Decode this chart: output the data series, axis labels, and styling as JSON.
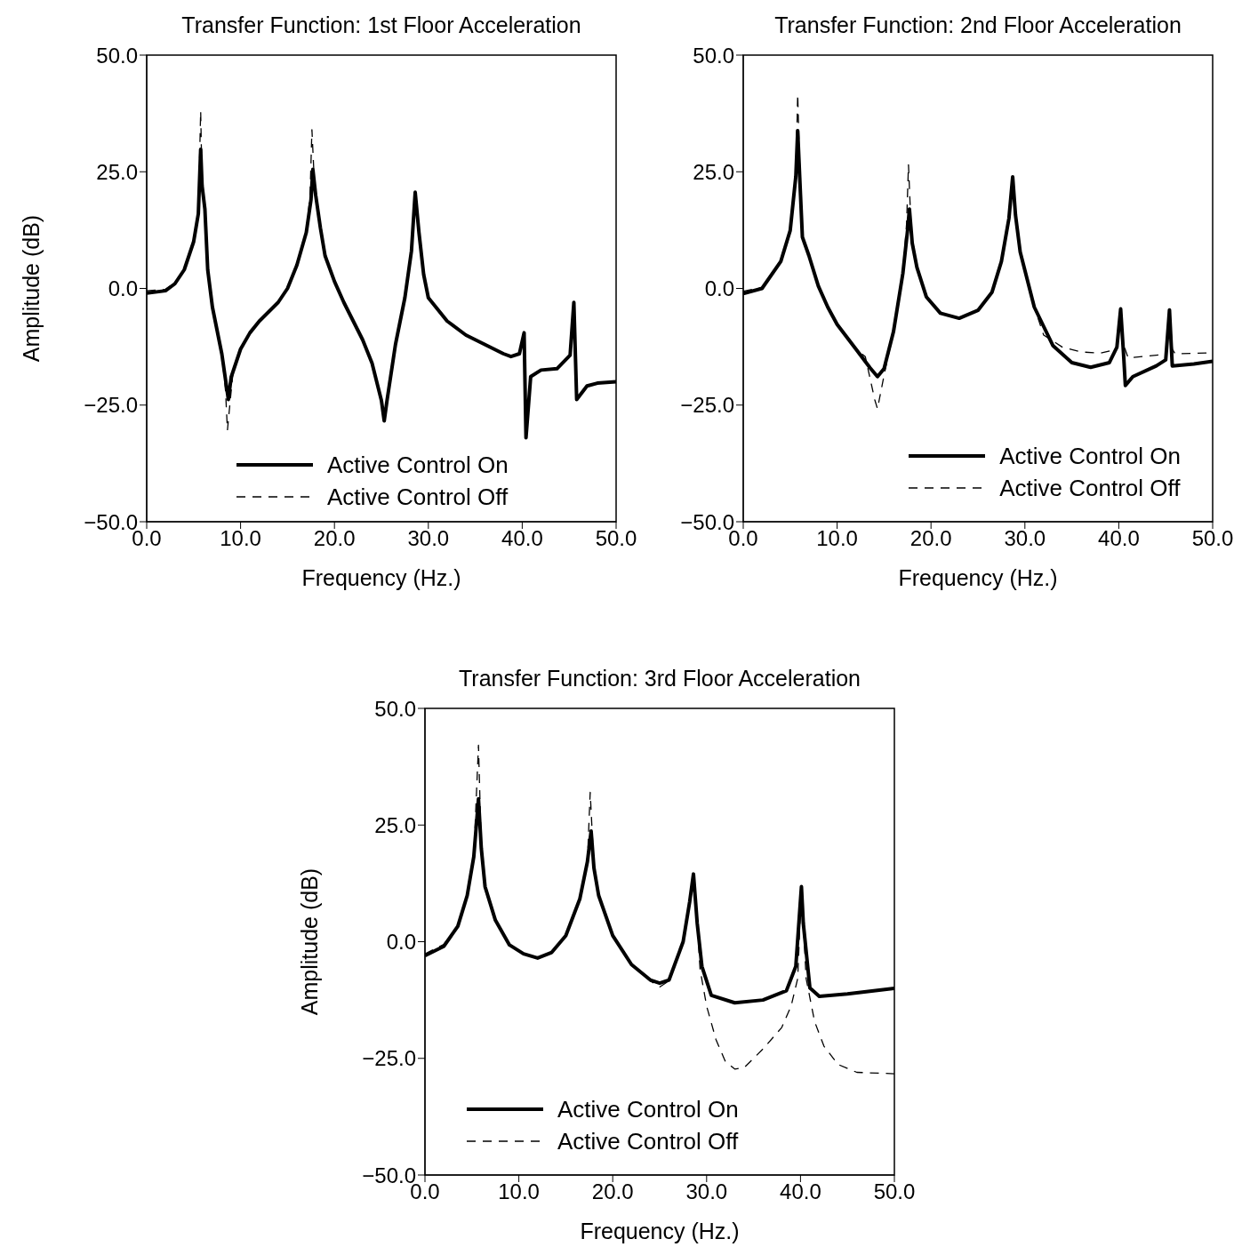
{
  "chart_data": [
    {
      "type": "line",
      "title": "Transfer Function: 1st Floor Acceleration",
      "xlabel": "Frequency (Hz.)",
      "ylabel": "Amplitude (dB)",
      "xlim": [
        0,
        50
      ],
      "ylim": [
        -50,
        50
      ],
      "xticks": [
        {
          "value": 0,
          "label": "0.0"
        },
        {
          "value": 10,
          "label": "10.0"
        },
        {
          "value": 20,
          "label": "20.0"
        },
        {
          "value": 30,
          "label": "30.0"
        },
        {
          "value": 40,
          "label": "40.0"
        },
        {
          "value": 50,
          "label": "50.0"
        }
      ],
      "yticks": [
        {
          "value": -50,
          "label": "−50.0"
        },
        {
          "value": -25,
          "label": "−25.0"
        },
        {
          "value": 0,
          "label": "0.0"
        },
        {
          "value": 25,
          "label": "25.0"
        },
        {
          "value": 50,
          "label": "50.0"
        }
      ],
      "legend": "bottom",
      "series": [
        {
          "name": "Active Control On",
          "color": "#000000",
          "line_style": "solid",
          "x": [
            0,
            2,
            3,
            4,
            5,
            5.5,
            5.75,
            5.9,
            6.2,
            6.5,
            7,
            8,
            8.5,
            8.7,
            9,
            10,
            11,
            12,
            14,
            15,
            16,
            17,
            17.5,
            17.7,
            18,
            18.5,
            19,
            20,
            21,
            22,
            23,
            24,
            25,
            25.3,
            25.6,
            26.5,
            27.5,
            28.2,
            28.6,
            29,
            29.5,
            30,
            32,
            34,
            36,
            38,
            38.8,
            39.7,
            40.2,
            40.4,
            40.9,
            42,
            43.7,
            45.1,
            45.5,
            45.8,
            46.9,
            48,
            50
          ],
          "values": [
            -1,
            -0.5,
            1,
            4,
            10,
            16,
            29.8,
            22,
            17,
            4,
            -4,
            -14,
            -21,
            -23.8,
            -19,
            -13,
            -9.5,
            -7,
            -3,
            0,
            5,
            12,
            19,
            25.5,
            20,
            13,
            7,
            1.5,
            -3,
            -7,
            -11,
            -16,
            -24,
            -28.4,
            -24,
            -12,
            -2,
            8,
            20.6,
            12,
            3,
            -2,
            -7,
            -10,
            -12,
            -14,
            -14.6,
            -14,
            -9.5,
            -32,
            -18.9,
            -17.5,
            -17.2,
            -14.3,
            -3,
            -23.8,
            -20.9,
            -20.3,
            -20
          ]
        },
        {
          "name": "Active Control Off",
          "color": "#000000",
          "line_style": "dashed",
          "x": [
            0,
            2,
            3,
            4,
            5,
            5.5,
            5.75,
            5.9,
            6.2,
            6.5,
            7,
            8,
            8.4,
            8.6,
            8.9,
            9.2,
            10,
            11,
            12,
            14,
            15,
            16,
            17,
            17.4,
            17.6,
            17.9,
            18.5,
            19,
            20,
            21,
            22,
            23,
            24,
            25,
            25.3,
            25.6,
            26.5,
            27.5,
            28.2,
            28.6,
            29,
            29.5,
            30,
            32,
            34,
            36,
            38,
            38.8,
            39.7,
            40.2,
            40.4,
            40.9,
            42,
            43.7,
            45.1,
            45.5,
            45.8,
            46.9,
            48,
            50
          ],
          "values": [
            -0.5,
            -0.2,
            1.2,
            4,
            10,
            16,
            38,
            22,
            17,
            4,
            -4,
            -14,
            -22,
            -30.4,
            -24,
            -18,
            -13,
            -9.5,
            -7,
            -3,
            0,
            5,
            12,
            20,
            34,
            21,
            13,
            7,
            1.5,
            -3,
            -7,
            -11,
            -16,
            -24,
            -28,
            -24,
            -12,
            -2,
            8,
            20.6,
            12,
            3,
            -2,
            -7,
            -10,
            -12,
            -14,
            -14.6,
            -14,
            -9.5,
            -32,
            -18.9,
            -17.5,
            -17.2,
            -14.3,
            -3,
            -23.8,
            -20.9,
            -20.3,
            -20
          ]
        }
      ]
    },
    {
      "type": "line",
      "title": "Transfer Function: 2nd Floor Acceleration",
      "xlabel": "Frequency (Hz.)",
      "xlim": [
        0,
        50
      ],
      "ylim": [
        -50,
        50
      ],
      "xticks": [
        {
          "value": 0,
          "label": "0.0"
        },
        {
          "value": 10,
          "label": "10.0"
        },
        {
          "value": 20,
          "label": "20.0"
        },
        {
          "value": 30,
          "label": "30.0"
        },
        {
          "value": 40,
          "label": "40.0"
        },
        {
          "value": 50,
          "label": "50.0"
        }
      ],
      "yticks": [
        {
          "value": -50,
          "label": "−50.0"
        },
        {
          "value": -25,
          "label": "−25.0"
        },
        {
          "value": 0,
          "label": "0.0"
        },
        {
          "value": 25,
          "label": "25.0"
        },
        {
          "value": 50,
          "label": "50.0"
        }
      ],
      "legend": "bottom right",
      "series": [
        {
          "name": "Active Control On",
          "color": "#000000",
          "line_style": "solid",
          "x": [
            0,
            2,
            4,
            5,
            5.6,
            5.8,
            6.1,
            6.3,
            7,
            8,
            9,
            10,
            12,
            13.5,
            14.3,
            15,
            16,
            17,
            17.5,
            17.7,
            18,
            18.5,
            19.5,
            21,
            23,
            25,
            26.5,
            27.5,
            28.3,
            28.7,
            29,
            29.5,
            31,
            33,
            35,
            37,
            39,
            39.8,
            40.2,
            40.5,
            40.7,
            41.5,
            44,
            45,
            45.4,
            45.7,
            48,
            50
          ],
          "values": [
            -1.1,
            0,
            5.8,
            12.4,
            24,
            33.8,
            20,
            11,
            7,
            0.5,
            -4,
            -7.7,
            -13,
            -17,
            -18.9,
            -17.2,
            -9.3,
            3.2,
            12.4,
            17,
            9.7,
            4.5,
            -1.8,
            -5.3,
            -6.4,
            -4.7,
            -0.8,
            5.8,
            15,
            23.9,
            15.7,
            7.8,
            -4,
            -12.3,
            -15.9,
            -16.9,
            -15.9,
            -12.6,
            -4.4,
            -13.8,
            -20.8,
            -18.9,
            -16.6,
            -15.3,
            -4.6,
            -16.6,
            -16.2,
            -15.6
          ]
        },
        {
          "name": "Active Control Off",
          "color": "#000000",
          "line_style": "dashed",
          "x": [
            0,
            2,
            4,
            5,
            5.6,
            5.8,
            6.1,
            6.3,
            7,
            8,
            9,
            10,
            12,
            13,
            14,
            14.3,
            15,
            16,
            17,
            17.4,
            17.6,
            17.9,
            18.5,
            19.5,
            21,
            23,
            25,
            26.5,
            27.5,
            28.3,
            28.7,
            29,
            29.5,
            31,
            32,
            34,
            36,
            38,
            39.8,
            40.2,
            40.5,
            41,
            44,
            45,
            45.4,
            45.7,
            46,
            50
          ],
          "values": [
            -0.6,
            0.2,
            5.8,
            12.4,
            24,
            41.6,
            20,
            11,
            7,
            0.5,
            -4,
            -7.7,
            -13,
            -14.6,
            -23.8,
            -25.8,
            -18.6,
            -9.3,
            3.2,
            14,
            26.5,
            12,
            4.5,
            -1.8,
            -5.3,
            -6.4,
            -4.7,
            -0.8,
            5.8,
            15,
            23.9,
            15.7,
            7.8,
            -4,
            -10,
            -12.6,
            -13.6,
            -13.9,
            -13,
            -4.4,
            -12,
            -14.9,
            -14.3,
            -14.1,
            -4.6,
            -13,
            -14,
            -13.8
          ]
        }
      ]
    },
    {
      "type": "line",
      "title": "Transfer Function: 3rd Floor Acceleration",
      "xlabel": "Frequency (Hz.)",
      "ylabel": "Amplitude (dB)",
      "xlim": [
        0,
        50
      ],
      "ylim": [
        -50,
        50
      ],
      "xticks": [
        {
          "value": 0,
          "label": "0.0"
        },
        {
          "value": 10,
          "label": "10.0"
        },
        {
          "value": 20,
          "label": "20.0"
        },
        {
          "value": 30,
          "label": "30.0"
        },
        {
          "value": 40,
          "label": "40.0"
        },
        {
          "value": 50,
          "label": "50.0"
        }
      ],
      "yticks": [
        {
          "value": -50,
          "label": "−50.0"
        },
        {
          "value": -25,
          "label": "−25.0"
        },
        {
          "value": 0,
          "label": "0.0"
        },
        {
          "value": 25,
          "label": "25.0"
        },
        {
          "value": 50,
          "label": "50.0"
        }
      ],
      "legend": "bottom left",
      "series": [
        {
          "name": "Active Control On",
          "color": "#000000",
          "line_style": "solid",
          "x": [
            0,
            2,
            3.5,
            4.5,
            5.2,
            5.7,
            6,
            6.4,
            7.5,
            9,
            10.5,
            12,
            13.5,
            15,
            16.5,
            17.3,
            17.7,
            18,
            18.5,
            20,
            22,
            24,
            25,
            26,
            27.5,
            28.2,
            28.6,
            29,
            29.5,
            30.5,
            33,
            36,
            38.5,
            39.5,
            40.1,
            40.3,
            41,
            42,
            45,
            50
          ],
          "values": [
            -3,
            -1,
            3.3,
            9.9,
            18.2,
            30.6,
            20,
            11.8,
            4.6,
            -0.7,
            -2.6,
            -3.5,
            -2.3,
            1.3,
            9.2,
            17.1,
            23.7,
            15.8,
            9.9,
            1.3,
            -4.9,
            -8.2,
            -8.9,
            -8.2,
            0,
            8.6,
            14.5,
            3.9,
            -5.3,
            -11.5,
            -13.1,
            -12.5,
            -10.5,
            -5.3,
            11.8,
            3.9,
            -9.9,
            -11.7,
            -11.2,
            -10
          ]
        },
        {
          "name": "Active Control Off",
          "color": "#000000",
          "line_style": "dashed",
          "x": [
            0,
            2,
            3.5,
            4.5,
            5.2,
            5.7,
            6,
            6.4,
            7.5,
            9,
            10.5,
            12,
            13.5,
            15,
            16.5,
            17.3,
            17.6,
            18,
            18.5,
            20,
            22,
            24,
            25,
            26,
            27.5,
            28.2,
            28.6,
            29,
            29.3,
            30,
            31,
            32,
            33,
            34,
            36,
            38,
            39,
            39.7,
            40.1,
            40.6,
            41.5,
            42.5,
            44,
            46,
            50
          ],
          "values": [
            -2.6,
            -0.6,
            3.3,
            9.9,
            18.2,
            42.1,
            20,
            11.8,
            4.6,
            -0.7,
            -2.6,
            -3.5,
            -2.3,
            1.3,
            9.2,
            17.1,
            32,
            15.8,
            9.9,
            1.3,
            -4.9,
            -8.4,
            -9.7,
            -8.4,
            0,
            8.6,
            14.5,
            3.9,
            -5.9,
            -13.8,
            -21,
            -25.7,
            -27.3,
            -27,
            -23,
            -18.4,
            -13.8,
            -7.9,
            11.8,
            -7.9,
            -17.1,
            -22.4,
            -26.3,
            -28,
            -28.3
          ]
        }
      ]
    }
  ]
}
